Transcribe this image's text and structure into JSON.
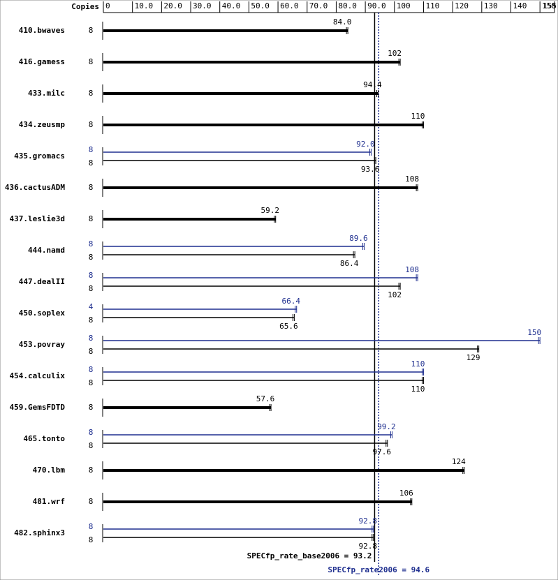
{
  "chart_data": {
    "type": "bar",
    "copies_header": "Copies",
    "categories": [
      "410.bwaves",
      "416.gamess",
      "433.milc",
      "434.zeusmp",
      "435.gromacs",
      "436.cactusADM",
      "437.leslie3d",
      "444.namd",
      "447.dealII",
      "450.soplex",
      "453.povray",
      "454.calculix",
      "459.GemsFDTD",
      "465.tonto",
      "470.lbm",
      "481.wrf",
      "482.sphinx3"
    ],
    "series": [
      {
        "color": "#000000",
        "copies": [
          8,
          8,
          8,
          8,
          8,
          8,
          8,
          8,
          8,
          8,
          8,
          8,
          8,
          8,
          8,
          8,
          8
        ],
        "values": [
          84.0,
          102,
          94.4,
          110,
          93.6,
          108,
          59.2,
          86.4,
          102,
          65.6,
          129,
          110,
          57.6,
          97.6,
          124,
          106,
          92.8
        ],
        "value_labels": [
          "84.0",
          "102",
          "94.4",
          "110",
          "93.6",
          "108",
          "59.2",
          "86.4",
          "102",
          "65.6",
          "129",
          "110",
          "57.6",
          "97.6",
          "124",
          "106",
          "92.8"
        ]
      },
      {
        "color": "#1f2f8f",
        "copies": [
          null,
          null,
          null,
          null,
          8,
          null,
          null,
          8,
          8,
          4,
          8,
          8,
          null,
          8,
          null,
          null,
          8
        ],
        "values": [
          null,
          null,
          null,
          null,
          92.0,
          null,
          null,
          89.6,
          108,
          66.4,
          150,
          110,
          null,
          99.2,
          null,
          null,
          92.8
        ],
        "value_labels": [
          null,
          null,
          null,
          null,
          "92.0",
          null,
          null,
          "89.6",
          "108",
          "66.4",
          "150",
          "110",
          null,
          "99.2",
          null,
          null,
          "92.8"
        ]
      }
    ],
    "xlim": [
      0,
      155
    ],
    "xticks": [
      0,
      {
        "value": 10,
        "label": "10.0"
      },
      {
        "value": 20,
        "label": "20.0"
      },
      {
        "value": 30,
        "label": "30.0"
      },
      {
        "value": 40,
        "label": "40.0"
      },
      {
        "value": 50,
        "label": "50.0"
      },
      {
        "value": 60,
        "label": "60.0"
      },
      {
        "value": 70,
        "label": "70.0"
      },
      {
        "value": 80,
        "label": "80.0"
      },
      {
        "value": 90,
        "label": "90.0"
      },
      100,
      110,
      120,
      130,
      140,
      150,
      155
    ],
    "base_summary": {
      "value": 93.2,
      "label": "SPECfp_rate_base2006 = 93.2"
    },
    "peak_summary": {
      "value": 94.6,
      "label": "SPECfp_rate2006 = 94.6"
    }
  }
}
